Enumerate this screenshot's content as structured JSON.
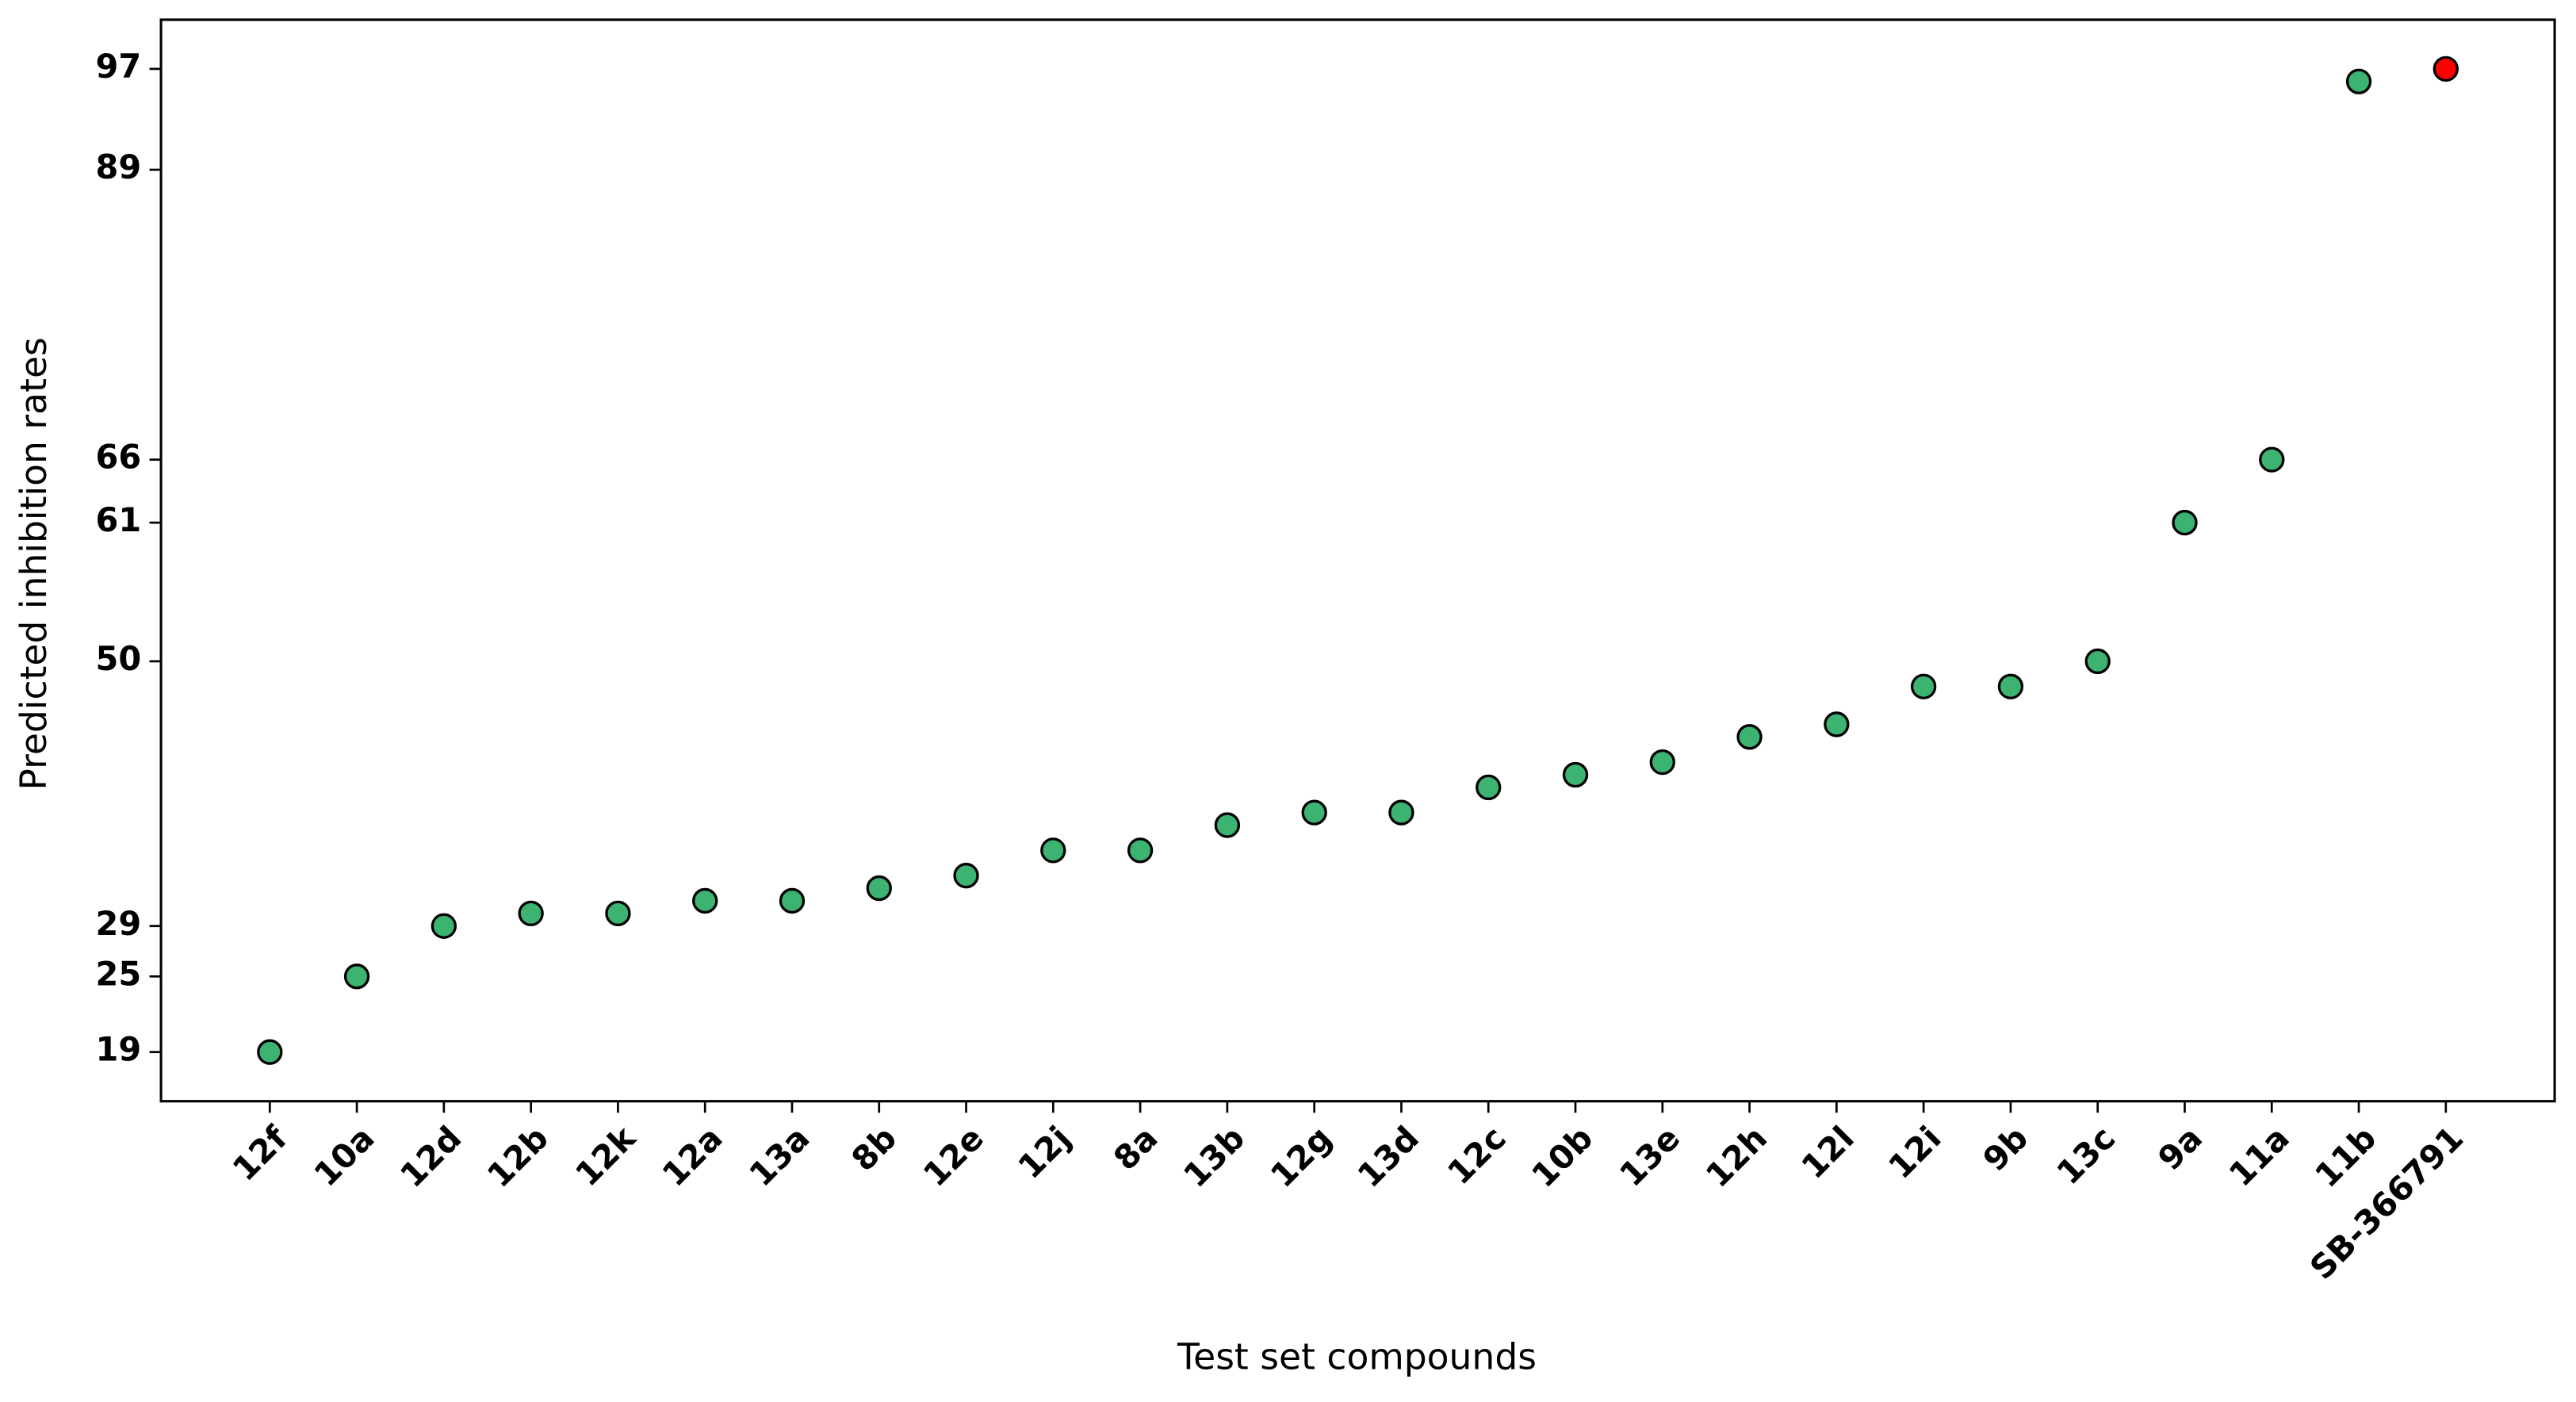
{
  "chart_data": {
    "type": "scatter",
    "xlabel": "Test set compounds",
    "ylabel": "Predicted inhibition rates",
    "categories": [
      "12f",
      "10a",
      "12d",
      "12b",
      "12k",
      "12a",
      "13a",
      "8b",
      "12e",
      "12j",
      "8a",
      "13b",
      "12g",
      "13d",
      "12c",
      "10b",
      "13e",
      "12h",
      "12l",
      "12i",
      "9b",
      "13c",
      "9a",
      "11a",
      "11b",
      "SB-366791"
    ],
    "values": [
      19,
      25,
      29,
      30,
      30,
      31,
      31,
      32,
      33,
      35,
      35,
      37,
      38,
      38,
      40,
      41,
      42,
      44,
      45,
      48,
      48,
      50,
      61,
      66,
      96,
      97
    ],
    "colors": [
      "#3cb371",
      "#3cb371",
      "#3cb371",
      "#3cb371",
      "#3cb371",
      "#3cb371",
      "#3cb371",
      "#3cb371",
      "#3cb371",
      "#3cb371",
      "#3cb371",
      "#3cb371",
      "#3cb371",
      "#3cb371",
      "#3cb371",
      "#3cb371",
      "#3cb371",
      "#3cb371",
      "#3cb371",
      "#3cb371",
      "#3cb371",
      "#3cb371",
      "#3cb371",
      "#3cb371",
      "#3cb371",
      "#ff0000"
    ],
    "ylim": [
      15.1,
      100.9
    ],
    "yticks": [
      19,
      25,
      29,
      50,
      61,
      66,
      89,
      97
    ]
  }
}
